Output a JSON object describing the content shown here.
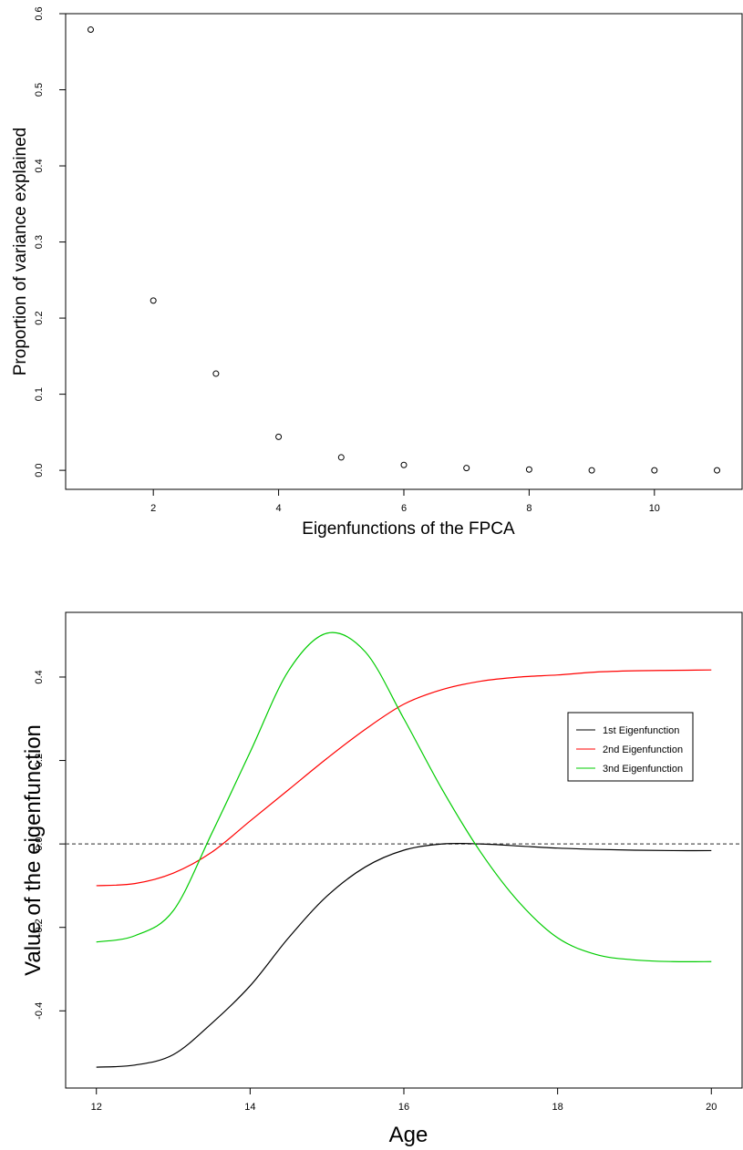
{
  "chart_data": [
    {
      "type": "scatter",
      "xlabel": "Eigenfunctions of the FPCA",
      "ylabel": "Proportion of variance explained",
      "x": [
        1,
        2,
        3,
        4,
        5,
        6,
        7,
        8,
        9,
        10,
        11
      ],
      "values": [
        0.579,
        0.223,
        0.127,
        0.044,
        0.017,
        0.007,
        0.003,
        0.001,
        0.0,
        0.0,
        0.0
      ],
      "xlim": [
        0.6,
        11.4
      ],
      "ylim": [
        -0.025,
        0.6
      ],
      "xticks": [
        2,
        4,
        6,
        8,
        10
      ],
      "xtick_labels": [
        "2",
        "4",
        "6",
        "8",
        "10"
      ],
      "yticks": [
        0.0,
        0.1,
        0.2,
        0.3,
        0.4,
        0.5,
        0.6
      ],
      "ytick_labels": [
        "0.0",
        "0.1",
        "0.2",
        "0.3",
        "0.4",
        "0.5",
        "0.6"
      ],
      "marker": "open-circle",
      "grid": false
    },
    {
      "type": "line",
      "xlabel": "Age",
      "ylabel": "Value of the eigenfunction",
      "xlim": [
        11.6,
        20.4
      ],
      "ylim": [
        -0.585,
        0.555
      ],
      "xticks": [
        12,
        14,
        16,
        18,
        20
      ],
      "xtick_labels": [
        "12",
        "14",
        "16",
        "18",
        "20"
      ],
      "yticks": [
        -0.4,
        -0.2,
        0.0,
        0.2,
        0.4
      ],
      "ytick_labels": [
        "-0.4",
        "-0.2",
        "0.0",
        "0.2",
        "0.4"
      ],
      "reference_line": {
        "y": 0.0,
        "style": "dashed",
        "color": "#555555"
      },
      "legend_position": "bottom-right",
      "grid": false,
      "x": [
        12,
        12.5,
        13,
        13.5,
        14,
        14.5,
        15,
        15.5,
        16,
        16.5,
        17,
        17.5,
        18,
        18.5,
        19,
        19.5,
        20
      ],
      "series": [
        {
          "name": "1st Eigenfunction",
          "color": "#000000",
          "values": [
            -0.535,
            -0.53,
            -0.505,
            -0.43,
            -0.34,
            -0.225,
            -0.125,
            -0.055,
            -0.015,
            0.0,
            0.0,
            -0.005,
            -0.01,
            -0.013,
            -0.015,
            -0.016,
            -0.016
          ]
        },
        {
          "name": "2nd Eigenfunction",
          "color": "#ff0000",
          "values": [
            -0.1,
            -0.095,
            -0.07,
            -0.02,
            0.055,
            0.13,
            0.205,
            0.275,
            0.335,
            0.37,
            0.39,
            0.4,
            0.405,
            0.412,
            0.415,
            0.416,
            0.417
          ]
        },
        {
          "name": "3nd Eigenfunction",
          "color": "#00cc00",
          "values": [
            -0.235,
            -0.22,
            -0.16,
            0.025,
            0.22,
            0.415,
            0.505,
            0.46,
            0.3,
            0.13,
            -0.02,
            -0.14,
            -0.225,
            -0.265,
            -0.278,
            -0.282,
            -0.282
          ]
        }
      ]
    }
  ]
}
